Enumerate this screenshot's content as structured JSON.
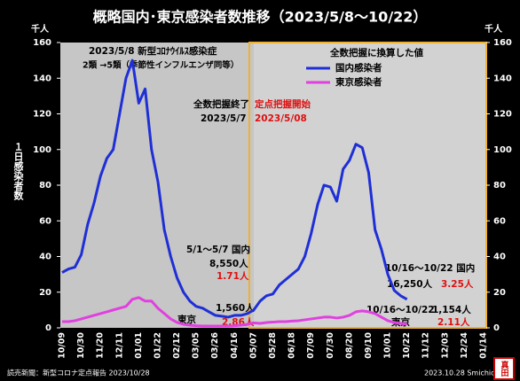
{
  "chart_data": {
    "type": "line",
    "title": "概略国内･東京感染者数推移（2023/5/8～10/22）",
    "y_unit": "千人",
    "y2_unit": "千人",
    "y_axis_label": "１日感染者数",
    "legend_title": "全数把握に換算した値",
    "categories": [
      "10/09",
      null,
      null,
      "10/30",
      null,
      null,
      "11/20",
      null,
      null,
      "12/11",
      null,
      null,
      "01/01",
      null,
      null,
      "01/22",
      null,
      null,
      "02/12",
      null,
      null,
      "03/05",
      null,
      null,
      "03/26",
      null,
      null,
      "04/16",
      null,
      null,
      "05/07",
      null,
      null,
      "05/28",
      null,
      null,
      "06/18",
      null,
      null,
      "07/09",
      null,
      null,
      "07/30",
      null,
      null,
      "08/20",
      null,
      null,
      "09/10",
      null,
      null,
      "10/01",
      null,
      null,
      "10/22",
      null,
      null,
      "11/12",
      null,
      null,
      "12/03",
      null,
      null,
      "12/24",
      null,
      null,
      "01/14"
    ],
    "series": [
      {
        "name": "国内感染者",
        "color": "#1f2fd6",
        "values": [
          31,
          33,
          34,
          41,
          58,
          70,
          85,
          95,
          100,
          120,
          140,
          150,
          126,
          134,
          100,
          82,
          55,
          40,
          28,
          20,
          15,
          12,
          11,
          9,
          7,
          6.5,
          6,
          7,
          7,
          8,
          10,
          15,
          18,
          19,
          24,
          27,
          30,
          33,
          40,
          53,
          69,
          80,
          79,
          71,
          89,
          94,
          103,
          101,
          87,
          55,
          44,
          30,
          21,
          18,
          16,
          null,
          null,
          null,
          null,
          null,
          null,
          null,
          null,
          null,
          null,
          null,
          null
        ]
      },
      {
        "name": "東京感染者",
        "color": "#e040e0",
        "values": [
          3.5,
          3.5,
          4,
          5,
          6,
          7,
          8,
          9,
          10,
          11,
          12,
          16,
          17,
          15,
          15,
          11,
          8,
          5,
          3,
          2,
          1.5,
          1.2,
          1,
          1,
          1,
          1,
          1,
          1.2,
          1.5,
          2,
          2.8,
          2.5,
          3,
          3.2,
          3.5,
          3.5,
          3.8,
          4,
          4.5,
          5,
          5.5,
          6,
          6,
          5.5,
          6,
          7,
          9,
          9.5,
          9,
          8,
          6,
          4,
          3,
          2.5,
          2.1,
          null,
          null,
          null,
          null,
          null,
          null,
          null,
          null,
          null,
          null,
          null,
          null
        ]
      }
    ],
    "ylim": [
      0,
      160
    ],
    "yticks": [
      0,
      20,
      40,
      60,
      80,
      100,
      120,
      140,
      160
    ],
    "y2lim": [
      0,
      160
    ],
    "y2ticks": [
      0,
      20,
      40,
      60,
      80,
      100,
      120,
      140,
      160
    ],
    "grid": false,
    "annotations": [
      "2023/5/8 新型ｺﾛﾅｳｲﾙｽ感染症",
      "2類 →5類（季節性インフルエンザ同等）",
      "全数把握終了",
      "定点把握開始",
      "2023/5/7",
      "2023/5/08",
      "5/1～5/7 国内",
      "8,550人",
      "1.71人",
      "1,560人",
      "東京",
      "2.86人",
      "10/16～10/22 国内",
      "16,250人",
      "3.25人",
      "10/16～10/22",
      "1,154人",
      "東京",
      "2.11人"
    ],
    "source": "読売新聞：新型コロナ定点報告 2023/10/28",
    "credit": "2023.10.28 Smichio",
    "stamp": "真田"
  }
}
